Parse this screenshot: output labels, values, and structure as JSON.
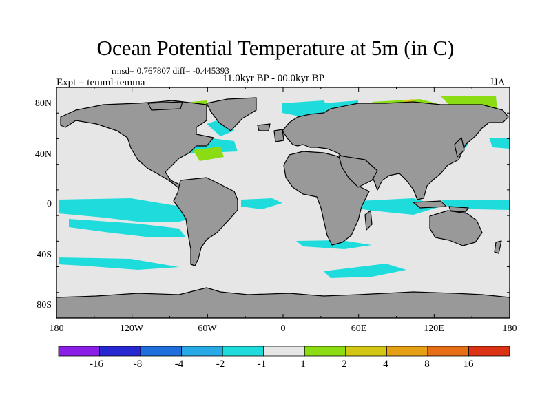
{
  "title": "Ocean Potential Temperature at 5m (in C)",
  "stats_line": "rmsd= 0.767807 diff= -0.445393",
  "experiment": "Expt = temml-temma",
  "period": "11.0kyr BP - 00.0kyr BP",
  "season": "JJA",
  "lat_labels": [
    "80N",
    "40N",
    "0",
    "40S",
    "80S"
  ],
  "lon_labels": [
    "180",
    "120W",
    "60W",
    "0",
    "60E",
    "120E",
    "180"
  ],
  "colors": {
    "land": "#999999",
    "neutral_ocean": "#e6e6e6",
    "coast": "#000000"
  },
  "colorbar": {
    "colors": [
      "#8a1ee6",
      "#2828d2",
      "#1e6edc",
      "#28aae6",
      "#1edcdc",
      "#e6e6e6",
      "#8cdc14",
      "#d2c814",
      "#e6a014",
      "#e66e14",
      "#dc3214"
    ],
    "labels": [
      "-16",
      "-8",
      "-4",
      "-2",
      "-1",
      "1",
      "2",
      "4",
      "8",
      "16"
    ]
  }
}
